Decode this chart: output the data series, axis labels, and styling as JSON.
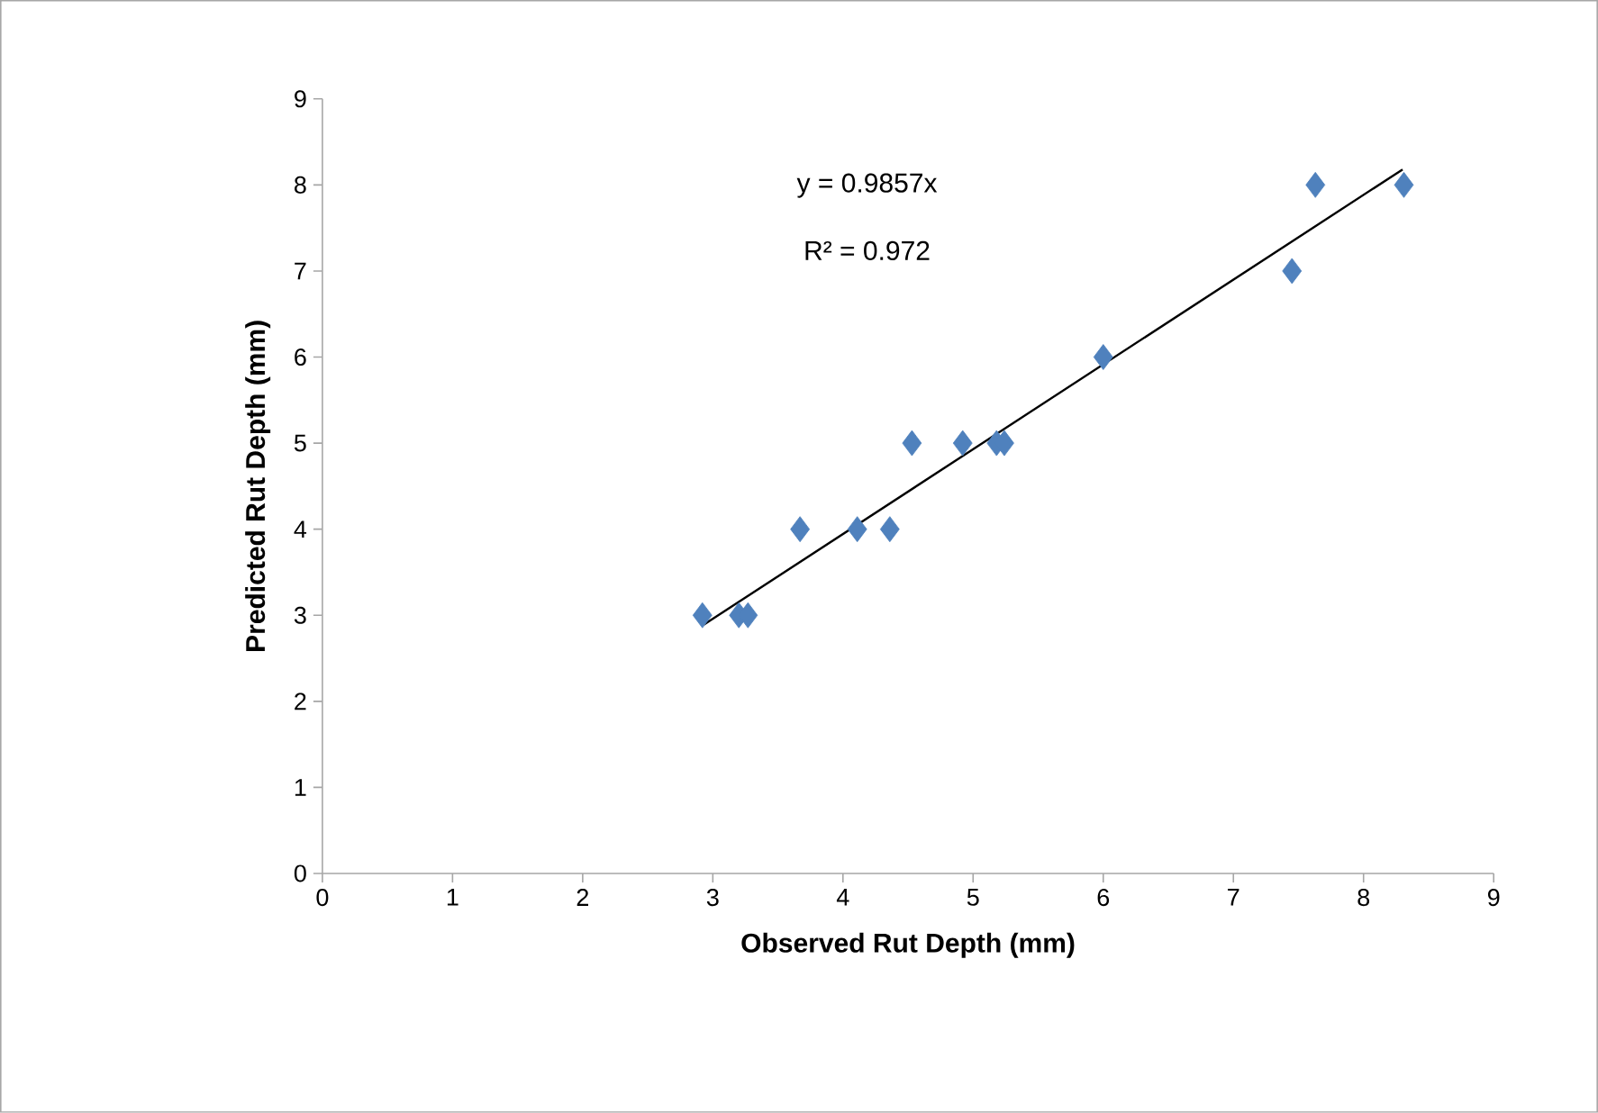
{
  "chart_data": {
    "type": "scatter",
    "xlabel": "Observed  Rut Depth (mm)",
    "ylabel": "Predicted Rut Depth (mm)",
    "xlim": [
      0,
      9
    ],
    "ylim": [
      0,
      9
    ],
    "xticks": [
      0,
      1,
      2,
      3,
      4,
      5,
      6,
      7,
      8,
      9
    ],
    "yticks": [
      0,
      1,
      2,
      3,
      4,
      5,
      6,
      7,
      8,
      9
    ],
    "grid": false,
    "marker": "diamond",
    "annotations": [
      "y = 0.9857x",
      "R² = 0.972"
    ],
    "series": [
      {
        "type": "scatter",
        "color": "#4f81bd",
        "x": [
          2.92,
          3.2,
          3.27,
          3.67,
          4.11,
          4.36,
          4.53,
          4.92,
          5.18,
          5.24,
          6.0,
          7.45,
          7.63,
          8.31
        ],
        "values": [
          3,
          3,
          3,
          4,
          4,
          4,
          5,
          5,
          5,
          5,
          6,
          7,
          8,
          8
        ]
      },
      {
        "type": "line",
        "color": "#000000",
        "marker": "none",
        "x": [
          2.93,
          8.3
        ],
        "values": [
          2.89,
          8.18
        ]
      }
    ]
  }
}
